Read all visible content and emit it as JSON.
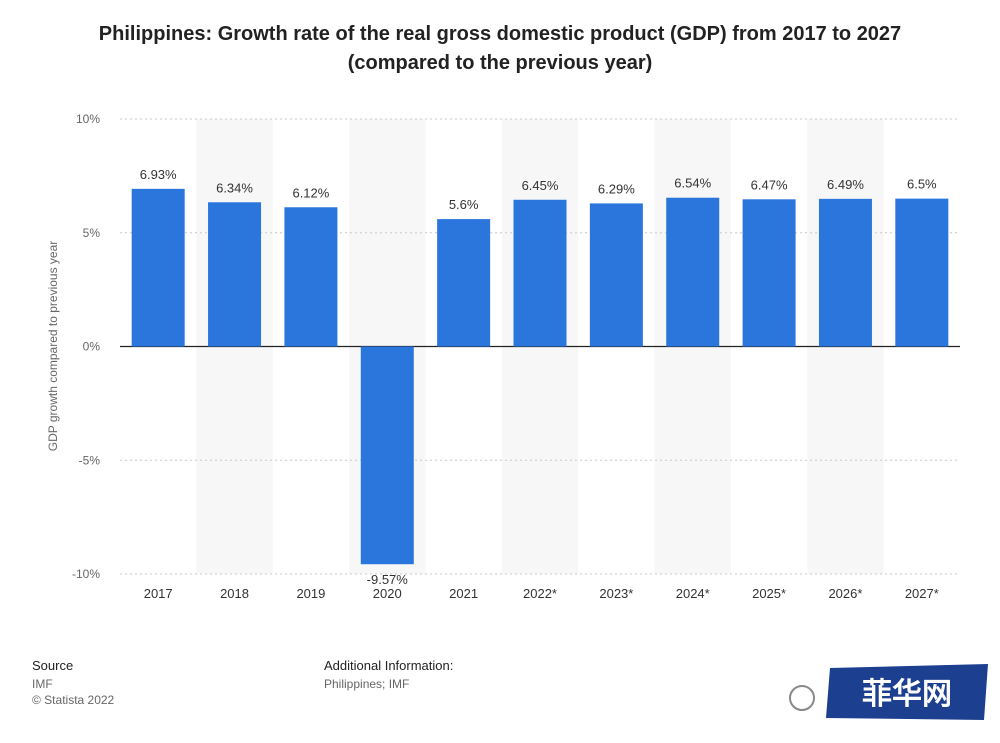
{
  "chart_data": {
    "type": "bar",
    "title_line1": "Philippines: Growth rate of the real gross domestic product (GDP) from 2017 to 2027",
    "title_line2": "(compared to the previous year)",
    "ylabel": "GDP growth compared to previous year",
    "categories": [
      "2017",
      "2018",
      "2019",
      "2020",
      "2021",
      "2022*",
      "2023*",
      "2024*",
      "2025*",
      "2026*",
      "2027*"
    ],
    "values": [
      6.93,
      6.34,
      6.12,
      -9.57,
      5.6,
      6.45,
      6.29,
      6.54,
      6.47,
      6.49,
      6.5
    ],
    "value_labels": [
      "6.93%",
      "6.34%",
      "6.12%",
      "-9.57%",
      "5.6%",
      "6.45%",
      "6.29%",
      "6.54%",
      "6.47%",
      "6.49%",
      "6.5%"
    ],
    "yticks": [
      10,
      5,
      0,
      -5,
      -10
    ],
    "ytick_labels": [
      "10%",
      "5%",
      "0%",
      "-5%",
      "-10%"
    ],
    "ylim": [
      -10,
      10
    ],
    "grid": true,
    "bar_color": "#2a76dd",
    "band_color": "#f7f7f7"
  },
  "footer": {
    "source_heading": "Source",
    "source_lines": [
      "IMF",
      "© Statista 2022"
    ],
    "info_heading": "Additional Information:",
    "info_line": "Philippines; IMF"
  },
  "watermark": {
    "text": "菲华网",
    "badge_color": "#1c3f8f"
  }
}
